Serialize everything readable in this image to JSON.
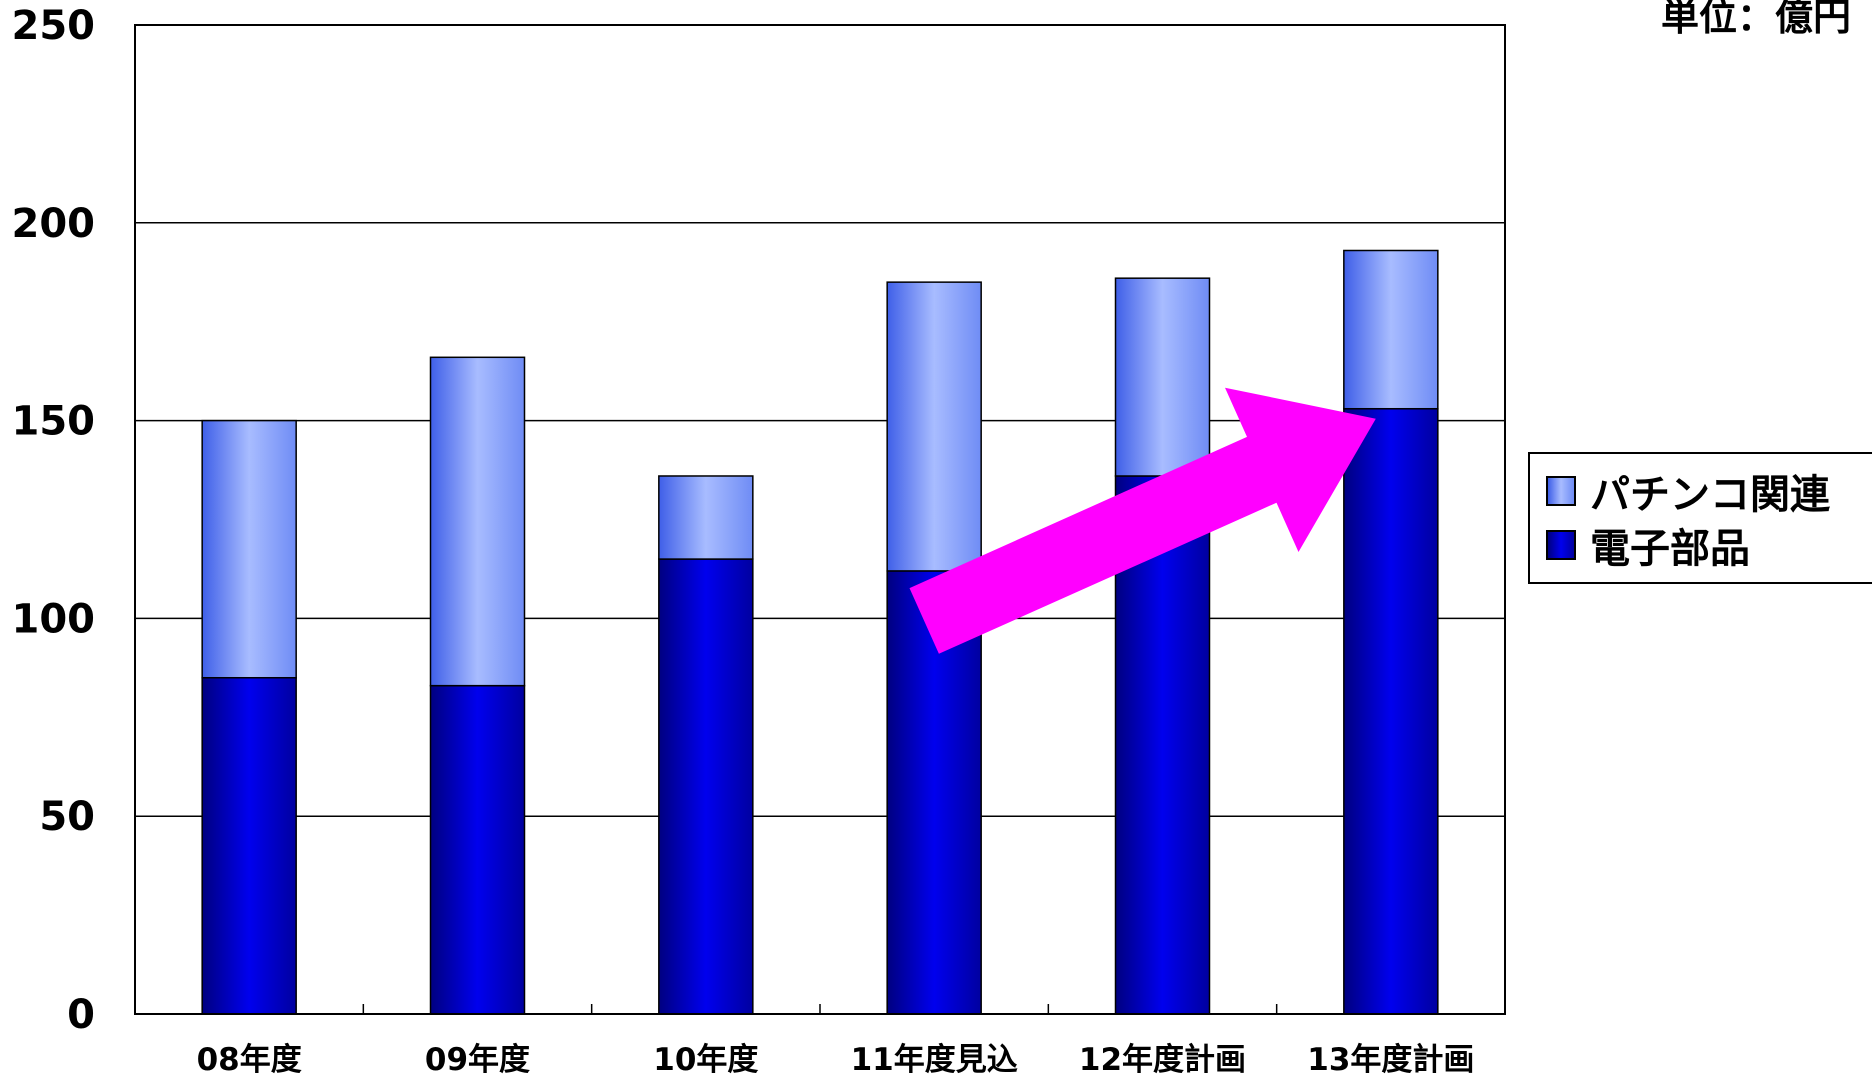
{
  "unit_label": "単位：億円",
  "colors": {
    "pachinko": "#8fa8ff",
    "electronic": "#0000d8",
    "arrow": "#ff00ff",
    "grid": "#000000"
  },
  "legend": {
    "items": [
      {
        "label": "パチンコ関連",
        "color_key": "pachinko"
      },
      {
        "label": "電子部品",
        "color_key": "electronic"
      }
    ]
  },
  "chart_data": {
    "type": "bar",
    "stacked": true,
    "title": "",
    "xlabel": "",
    "ylabel": "",
    "ylim": [
      0,
      250
    ],
    "yticks": [
      0,
      50,
      100,
      150,
      200,
      250
    ],
    "grid": true,
    "legend_position": "right",
    "categories": [
      "08年度",
      "09年度",
      "10年度",
      "11年度見込",
      "12年度計画",
      "13年度計画"
    ],
    "series": [
      {
        "name": "電子部品",
        "values": [
          85,
          83,
          115,
          112,
          136,
          153
        ]
      },
      {
        "name": "パチンコ関連",
        "values": [
          65,
          83,
          21,
          73,
          50,
          40
        ]
      }
    ],
    "annotations": [
      {
        "type": "arrow",
        "description": "upward trend arrow",
        "from": [
          "11年度見込",
          112
        ],
        "to": [
          "13年度計画",
          153
        ]
      }
    ]
  }
}
